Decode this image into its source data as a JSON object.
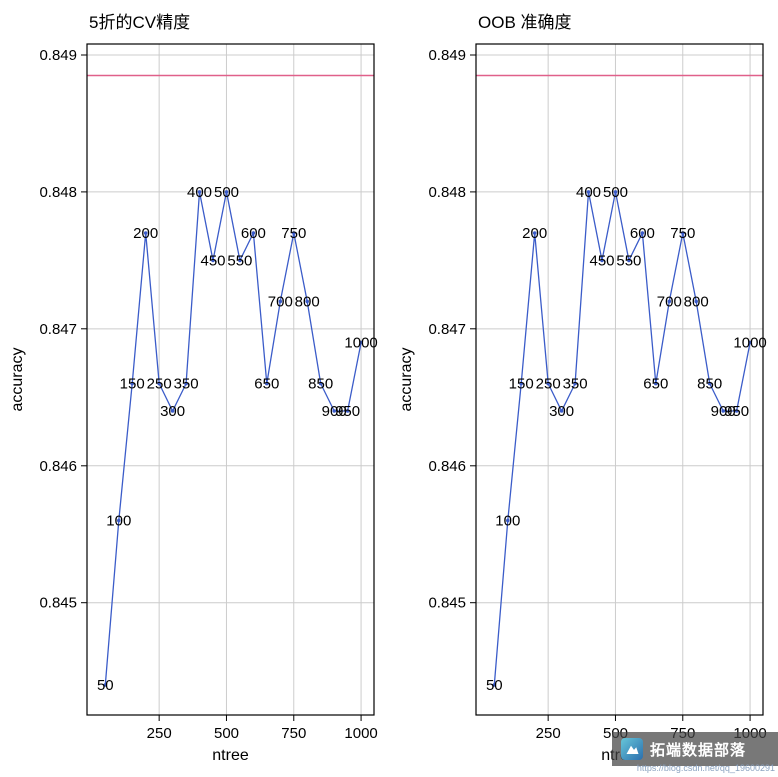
{
  "colors": {
    "line": "#3b5cc9",
    "point": "#3b5cc9",
    "reference_line": "#e0608a",
    "grid": "#cccccc",
    "axis": "#000000",
    "label": "#000000",
    "watermark_bg": "#444444",
    "watermark_text": "#ffffff",
    "url_text": "#8aa2c0"
  },
  "chart_data": [
    {
      "type": "line",
      "title": "5折的CV精度",
      "xlabel": "ntree",
      "ylabel": "accuracy",
      "x": [
        50,
        100,
        150,
        200,
        250,
        300,
        350,
        400,
        450,
        500,
        550,
        600,
        650,
        700,
        750,
        800,
        850,
        900,
        950,
        1000
      ],
      "y": [
        0.8444,
        0.8456,
        0.8466,
        0.8477,
        0.8466,
        0.8464,
        0.8466,
        0.848,
        0.8475,
        0.848,
        0.8475,
        0.8477,
        0.8466,
        0.8472,
        0.8477,
        0.8472,
        0.8466,
        0.8464,
        0.8464,
        0.8469
      ],
      "point_labels": [
        "50",
        "100",
        "150",
        "200",
        "250",
        "300",
        "350",
        "400",
        "450",
        "500",
        "550",
        "600",
        "650",
        "700",
        "750",
        "800",
        "850",
        "900",
        "950",
        "1000"
      ],
      "x_ticks": [
        250,
        500,
        750,
        1000
      ],
      "x_tick_labels": [
        "250",
        "500",
        "750",
        "1000"
      ],
      "y_ticks": [
        0.845,
        0.846,
        0.847,
        0.848,
        0.849
      ],
      "y_tick_labels": [
        "0.845",
        "0.846",
        "0.847",
        "0.848",
        "0.849"
      ],
      "xlim": [
        -18,
        1048
      ],
      "ylim": [
        0.84418,
        0.84908
      ],
      "reference_line_y": 0.84885,
      "grid": true,
      "legend": "none"
    },
    {
      "type": "line",
      "title": "OOB 准确度",
      "xlabel": "ntree",
      "ylabel": "accuracy",
      "x": [
        50,
        100,
        150,
        200,
        250,
        300,
        350,
        400,
        450,
        500,
        550,
        600,
        650,
        700,
        750,
        800,
        850,
        900,
        950,
        1000
      ],
      "y": [
        0.8444,
        0.8456,
        0.8466,
        0.8477,
        0.8466,
        0.8464,
        0.8466,
        0.848,
        0.8475,
        0.848,
        0.8475,
        0.8477,
        0.8466,
        0.8472,
        0.8477,
        0.8472,
        0.8466,
        0.8464,
        0.8464,
        0.8469
      ],
      "point_labels": [
        "50",
        "100",
        "150",
        "200",
        "250",
        "300",
        "350",
        "400",
        "450",
        "500",
        "550",
        "600",
        "650",
        "700",
        "750",
        "800",
        "850",
        "900",
        "950",
        "1000"
      ],
      "x_ticks": [
        250,
        500,
        750,
        1000
      ],
      "x_tick_labels": [
        "250",
        "500",
        "750",
        "1000"
      ],
      "y_ticks": [
        0.845,
        0.846,
        0.847,
        0.848,
        0.849
      ],
      "y_tick_labels": [
        "0.845",
        "0.846",
        "0.847",
        "0.848",
        "0.849"
      ],
      "xlim": [
        -18,
        1048
      ],
      "ylim": [
        0.84418,
        0.84908
      ],
      "reference_line_y": 0.84885,
      "grid": true,
      "legend": "none"
    }
  ],
  "watermark": {
    "brand": "拓端数据部落",
    "url": "https://blog.csdn.net/qq_19600291"
  }
}
